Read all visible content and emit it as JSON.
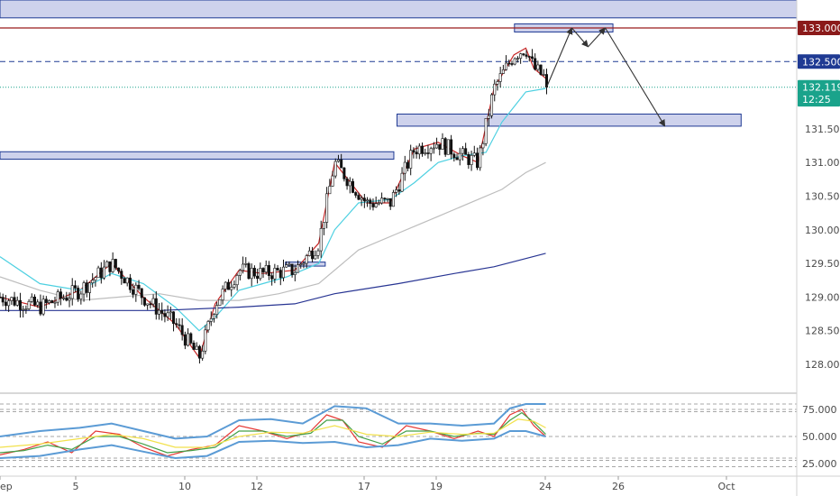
{
  "chart_data": [
    {
      "type": "candlestick",
      "title": "",
      "y_axis": {
        "position": "right",
        "ylim": [
          127.8,
          133.2
        ],
        "ticks": [
          "133.000",
          "132.500",
          "131.500",
          "131.000",
          "130.500",
          "130.000",
          "129.500",
          "129.000",
          "128.500",
          "128.000"
        ]
      },
      "x_axis": {
        "ticks": [
          "ep",
          "5",
          "10",
          "12",
          "17",
          "19",
          "24",
          "26",
          "Oct"
        ]
      },
      "price_labels": [
        {
          "text": "133.000",
          "value": 133.0,
          "color": "#8b1a1a"
        },
        {
          "text": "132.500",
          "value": 132.5,
          "color": "#1f3a93"
        },
        {
          "text": "132.119",
          "value": 132.119,
          "color": "#1aa38b"
        },
        {
          "text": "12:25",
          "value": 131.94,
          "color": "#1aa38b"
        }
      ],
      "horizontal_lines": [
        {
          "value": 133.0,
          "color": "#9b1c1c",
          "style": "solid"
        },
        {
          "value": 132.5,
          "color": "#1f3a93",
          "style": "dashed"
        },
        {
          "value": 132.119,
          "color": "#1aa38b",
          "style": "dotted"
        }
      ],
      "zones": [
        {
          "name": "resistance-top",
          "y_low": 133.15,
          "y_high": 133.5,
          "x_from": 0,
          "x_to": 1
        },
        {
          "name": "zone-peak",
          "y_low": 132.94,
          "y_high": 133.06,
          "x_from": 0.6457,
          "x_to": 0.7693
        },
        {
          "name": "zone-mid",
          "y_low": 131.54,
          "y_high": 131.72,
          "x_from": 0.4983,
          "x_to": 0.9302
        },
        {
          "name": "zone-left",
          "y_low": 131.05,
          "y_high": 131.16,
          "x_from": 0,
          "x_to": 0.4943
        },
        {
          "name": "zone-small",
          "y_low": 129.46,
          "y_high": 129.52,
          "x_from": 0.3583,
          "x_to": 0.4082
        }
      ],
      "projection": [
        {
          "x": 0.6861,
          "y": 132.12
        },
        {
          "x": 0.7177,
          "y": 133.0
        },
        {
          "x": 0.7381,
          "y": 132.72
        },
        {
          "x": 0.7597,
          "y": 133.0
        },
        {
          "x": 0.8345,
          "y": 131.54
        }
      ],
      "moving_averages": [
        {
          "name": "ma-fast",
          "color": "#c62828",
          "points": [
            [
              0,
              129.0
            ],
            [
              0.05,
              128.85
            ],
            [
              0.1,
              129.1
            ],
            [
              0.14,
              129.5
            ],
            [
              0.18,
              129.0
            ],
            [
              0.22,
              128.6
            ],
            [
              0.25,
              128.1
            ],
            [
              0.27,
              128.9
            ],
            [
              0.3,
              129.4
            ],
            [
              0.33,
              129.35
            ],
            [
              0.37,
              129.4
            ],
            [
              0.4,
              129.8
            ],
            [
              0.42,
              131.0
            ],
            [
              0.44,
              130.7
            ],
            [
              0.46,
              130.4
            ],
            [
              0.49,
              130.4
            ],
            [
              0.52,
              131.2
            ],
            [
              0.55,
              131.3
            ],
            [
              0.58,
              131.1
            ],
            [
              0.6,
              131.0
            ],
            [
              0.62,
              132.1
            ],
            [
              0.645,
              132.6
            ],
            [
              0.66,
              132.7
            ],
            [
              0.67,
              132.4
            ],
            [
              0.685,
              132.25
            ]
          ]
        },
        {
          "name": "ma-mid",
          "color": "#4dd0e1",
          "points": [
            [
              0,
              129.6
            ],
            [
              0.05,
              129.2
            ],
            [
              0.1,
              129.1
            ],
            [
              0.14,
              129.35
            ],
            [
              0.18,
              129.2
            ],
            [
              0.22,
              128.85
            ],
            [
              0.25,
              128.5
            ],
            [
              0.27,
              128.7
            ],
            [
              0.3,
              129.1
            ],
            [
              0.33,
              129.2
            ],
            [
              0.36,
              129.3
            ],
            [
              0.4,
              129.5
            ],
            [
              0.42,
              130.0
            ],
            [
              0.45,
              130.4
            ],
            [
              0.49,
              130.45
            ],
            [
              0.52,
              130.7
            ],
            [
              0.55,
              131.0
            ],
            [
              0.58,
              131.1
            ],
            [
              0.61,
              131.15
            ],
            [
              0.63,
              131.6
            ],
            [
              0.66,
              132.05
            ],
            [
              0.685,
              132.1
            ]
          ]
        },
        {
          "name": "ma-slow-grey",
          "color": "#bdbdbd",
          "points": [
            [
              0,
              129.3
            ],
            [
              0.05,
              129.1
            ],
            [
              0.1,
              128.95
            ],
            [
              0.15,
              129.0
            ],
            [
              0.2,
              129.05
            ],
            [
              0.25,
              128.95
            ],
            [
              0.3,
              128.95
            ],
            [
              0.35,
              129.05
            ],
            [
              0.4,
              129.2
            ],
            [
              0.45,
              129.7
            ],
            [
              0.5,
              129.95
            ],
            [
              0.55,
              130.2
            ],
            [
              0.6,
              130.45
            ],
            [
              0.63,
              130.6
            ],
            [
              0.66,
              130.85
            ],
            [
              0.685,
              131.0
            ]
          ]
        },
        {
          "name": "ma-long-navy",
          "color": "#283593",
          "points": [
            [
              0,
              128.8
            ],
            [
              0.1,
              128.8
            ],
            [
              0.2,
              128.8
            ],
            [
              0.3,
              128.85
            ],
            [
              0.37,
              128.9
            ],
            [
              0.42,
              129.05
            ],
            [
              0.5,
              129.2
            ],
            [
              0.57,
              129.35
            ],
            [
              0.62,
              129.45
            ],
            [
              0.685,
              129.65
            ]
          ]
        }
      ],
      "candles_summary": {
        "x_from": 0,
        "x_to": 0.6861,
        "low": 127.9,
        "high": 133.05,
        "last": 132.119,
        "peak_x": 0.6566
      }
    },
    {
      "type": "line",
      "name": "oscillator",
      "y_axis": {
        "ylim": [
          20,
          82
        ],
        "ticks": [
          "75.000",
          "50.000",
          "25.000"
        ]
      },
      "reference_levels": [
        80,
        75,
        73,
        50,
        30,
        28,
        22
      ],
      "series": [
        {
          "name": "osc-fast",
          "color": "#e53935",
          "points": [
            [
              0,
              33
            ],
            [
              0.03,
              38
            ],
            [
              0.06,
              45
            ],
            [
              0.09,
              35
            ],
            [
              0.12,
              55
            ],
            [
              0.15,
              52
            ],
            [
              0.18,
              40
            ],
            [
              0.21,
              32
            ],
            [
              0.24,
              38
            ],
            [
              0.27,
              42
            ],
            [
              0.3,
              60
            ],
            [
              0.33,
              55
            ],
            [
              0.36,
              48
            ],
            [
              0.39,
              55
            ],
            [
              0.41,
              70
            ],
            [
              0.43,
              65
            ],
            [
              0.45,
              45
            ],
            [
              0.48,
              40
            ],
            [
              0.51,
              60
            ],
            [
              0.54,
              55
            ],
            [
              0.57,
              48
            ],
            [
              0.6,
              55
            ],
            [
              0.62,
              50
            ],
            [
              0.64,
              70
            ],
            [
              0.655,
              75
            ],
            [
              0.67,
              60
            ],
            [
              0.685,
              50
            ]
          ]
        },
        {
          "name": "osc-smooth",
          "color": "#43a047",
          "points": [
            [
              0,
              35
            ],
            [
              0.03,
              37
            ],
            [
              0.06,
              42
            ],
            [
              0.09,
              38
            ],
            [
              0.12,
              50
            ],
            [
              0.15,
              50
            ],
            [
              0.18,
              43
            ],
            [
              0.21,
              35
            ],
            [
              0.24,
              37
            ],
            [
              0.27,
              40
            ],
            [
              0.3,
              55
            ],
            [
              0.33,
              55
            ],
            [
              0.36,
              50
            ],
            [
              0.39,
              53
            ],
            [
              0.41,
              65
            ],
            [
              0.43,
              65
            ],
            [
              0.45,
              50
            ],
            [
              0.48,
              43
            ],
            [
              0.51,
              55
            ],
            [
              0.54,
              55
            ],
            [
              0.57,
              50
            ],
            [
              0.6,
              53
            ],
            [
              0.62,
              52
            ],
            [
              0.64,
              65
            ],
            [
              0.655,
              72
            ],
            [
              0.67,
              63
            ],
            [
              0.685,
              52
            ]
          ]
        },
        {
          "name": "osc-signal",
          "color": "#f2e14c",
          "points": [
            [
              0,
              40
            ],
            [
              0.05,
              43
            ],
            [
              0.1,
              48
            ],
            [
              0.14,
              52
            ],
            [
              0.18,
              48
            ],
            [
              0.22,
              40
            ],
            [
              0.26,
              40
            ],
            [
              0.3,
              50
            ],
            [
              0.34,
              54
            ],
            [
              0.38,
              53
            ],
            [
              0.42,
              60
            ],
            [
              0.46,
              52
            ],
            [
              0.5,
              50
            ],
            [
              0.54,
              54
            ],
            [
              0.58,
              52
            ],
            [
              0.62,
              53
            ],
            [
              0.65,
              66
            ],
            [
              0.67,
              64
            ],
            [
              0.685,
              58
            ]
          ]
        },
        {
          "name": "band-upper",
          "color": "#5b9bd5",
          "points": [
            [
              0,
              50
            ],
            [
              0.05,
              55
            ],
            [
              0.1,
              58
            ],
            [
              0.14,
              62
            ],
            [
              0.18,
              55
            ],
            [
              0.22,
              48
            ],
            [
              0.26,
              50
            ],
            [
              0.3,
              65
            ],
            [
              0.34,
              66
            ],
            [
              0.38,
              62
            ],
            [
              0.42,
              78
            ],
            [
              0.46,
              76
            ],
            [
              0.5,
              62
            ],
            [
              0.54,
              62
            ],
            [
              0.58,
              60
            ],
            [
              0.62,
              62
            ],
            [
              0.64,
              76
            ],
            [
              0.66,
              80
            ],
            [
              0.685,
              80
            ]
          ]
        },
        {
          "name": "band-lower",
          "color": "#5b9bd5",
          "points": [
            [
              0,
              30
            ],
            [
              0.05,
              32
            ],
            [
              0.1,
              38
            ],
            [
              0.14,
              42
            ],
            [
              0.18,
              36
            ],
            [
              0.22,
              30
            ],
            [
              0.26,
              32
            ],
            [
              0.3,
              45
            ],
            [
              0.34,
              46
            ],
            [
              0.38,
              44
            ],
            [
              0.42,
              45
            ],
            [
              0.46,
              40
            ],
            [
              0.5,
              42
            ],
            [
              0.54,
              48
            ],
            [
              0.58,
              46
            ],
            [
              0.62,
              48
            ],
            [
              0.64,
              55
            ],
            [
              0.66,
              55
            ],
            [
              0.685,
              50
            ]
          ]
        }
      ]
    }
  ]
}
